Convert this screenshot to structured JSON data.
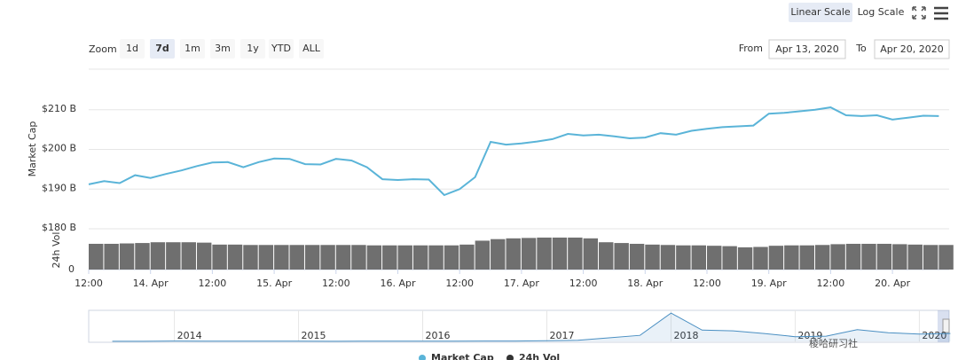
{
  "toolbar": {
    "scale_buttons": [
      "Linear Scale",
      "Log Scale"
    ],
    "active_scale": 0,
    "zoom_label": "Zoom",
    "zoom_buttons": [
      "1d",
      "7d",
      "1m",
      "3m",
      "1y",
      "YTD",
      "ALL"
    ],
    "active_zoom": 1,
    "from_label": "From",
    "from": "Apr 13, 2020",
    "to_label": "To",
    "to": "Apr 20, 2020"
  },
  "chart_data": [
    {
      "type": "line",
      "y_label": "Market Cap",
      "grid": true,
      "series": [
        {
          "name": "Market Cap",
          "color": "#5ab4d8",
          "x": [
            12,
            15,
            18,
            21,
            24,
            27,
            30,
            33,
            36,
            39,
            42,
            45,
            48,
            51,
            54,
            57,
            60,
            63,
            66,
            69,
            72,
            75,
            78,
            81,
            84,
            87,
            90,
            93,
            96,
            99,
            102,
            105,
            108,
            111,
            114,
            117,
            120,
            123,
            126,
            129,
            132,
            135,
            138,
            141,
            144,
            147,
            150,
            153,
            156,
            159,
            162,
            165,
            168,
            171,
            174,
            177
          ],
          "values": [
            191.2,
            192.0,
            191.5,
            193.5,
            192.8,
            193.8,
            194.7,
            195.8,
            196.7,
            196.8,
            195.5,
            196.8,
            197.7,
            197.6,
            196.3,
            196.2,
            197.6,
            197.2,
            195.5,
            192.5,
            192.3,
            192.5,
            192.4,
            188.5,
            190.0,
            193.0,
            201.9,
            201.2,
            201.5,
            202.0,
            202.6,
            203.9,
            203.5,
            203.7,
            203.3,
            202.8,
            203.0,
            204.1,
            203.7,
            204.7,
            205.2,
            205.6,
            205.8,
            206.0,
            209.0,
            209.2,
            209.6,
            210.0,
            210.6,
            208.6,
            208.4,
            208.6,
            207.5,
            208.0,
            208.5,
            208.4
          ]
        }
      ],
      "xlim": [
        12,
        179
      ],
      "xticks": [
        {
          "value": 12,
          "label": "12:00"
        },
        {
          "value": 24,
          "label": "14. Apr"
        },
        {
          "value": 36,
          "label": "12:00"
        },
        {
          "value": 48,
          "label": "15. Apr"
        },
        {
          "value": 60,
          "label": "12:00"
        },
        {
          "value": 72,
          "label": "16. Apr"
        },
        {
          "value": 84,
          "label": "12:00"
        },
        {
          "value": 96,
          "label": "17. Apr"
        },
        {
          "value": 108,
          "label": "12:00"
        },
        {
          "value": 120,
          "label": "18. Apr"
        },
        {
          "value": 132,
          "label": "12:00"
        },
        {
          "value": 144,
          "label": "19. Apr"
        },
        {
          "value": 156,
          "label": "12:00"
        },
        {
          "value": 168,
          "label": "20. Apr"
        }
      ],
      "ylim": [
        180,
        220
      ],
      "yticks": [
        {
          "value": 180,
          "label": "$180 B"
        },
        {
          "value": 190,
          "label": "$190 B"
        },
        {
          "value": 200,
          "label": "$200 B"
        },
        {
          "value": 210,
          "label": "$210 B"
        }
      ]
    },
    {
      "type": "bar",
      "y_label": "24h Vol",
      "series": [
        {
          "name": "24h Vol",
          "color": "#6f6f6f",
          "x": [
            12,
            15,
            18,
            21,
            24,
            27,
            30,
            33,
            36,
            39,
            42,
            45,
            48,
            51,
            54,
            57,
            60,
            63,
            66,
            69,
            72,
            75,
            78,
            81,
            84,
            87,
            90,
            93,
            96,
            99,
            102,
            105,
            108,
            111,
            114,
            117,
            120,
            123,
            126,
            129,
            132,
            135,
            138,
            141,
            144,
            147,
            150,
            153,
            156,
            159,
            162,
            165,
            168,
            171,
            174,
            177
          ],
          "values": [
            66,
            66,
            67,
            68,
            70,
            70,
            70,
            69,
            64,
            64,
            63,
            63,
            63,
            63,
            63,
            63,
            63,
            63,
            62,
            62,
            62,
            62,
            62,
            62,
            64,
            74,
            78,
            80,
            81,
            82,
            82,
            82,
            80,
            70,
            68,
            66,
            64,
            63,
            62,
            62,
            61,
            60,
            57,
            58,
            61,
            62,
            62,
            63,
            65,
            66,
            66,
            66,
            65,
            64,
            63,
            63
          ]
        }
      ],
      "xlim": [
        12,
        179
      ],
      "ylim": [
        0,
        100
      ],
      "yticks": [
        0
      ]
    },
    {
      "type": "area",
      "series": [
        {
          "name": "Market Cap",
          "color": "#4a8fc2",
          "x": [
            2013.5,
            2013.75,
            2014,
            2014.25,
            2014.5,
            2014.75,
            2015,
            2015.25,
            2015.5,
            2015.75,
            2016,
            2016.25,
            2016.5,
            2016.75,
            2017,
            2017.25,
            2017.5,
            2017.75,
            2018,
            2018.25,
            2018.5,
            2018.75,
            2019,
            2019.25,
            2019.5,
            2019.75,
            2020,
            2020.25
          ],
          "values": [
            1.5,
            2,
            10,
            6,
            8,
            5,
            4,
            3.5,
            4,
            4,
            6.5,
            6.5,
            10,
            10,
            16,
            30,
            95,
            160,
            750,
            300,
            280,
            210,
            125,
            140,
            310,
            230,
            195,
            210
          ]
        }
      ],
      "xlim": [
        2013.31,
        2020.24
      ],
      "ylim": [
        0,
        800
      ],
      "xticks": [
        2014,
        2015,
        2016,
        2017,
        2018,
        2019,
        2020
      ]
    }
  ],
  "watermark": "棱哈研习社"
}
